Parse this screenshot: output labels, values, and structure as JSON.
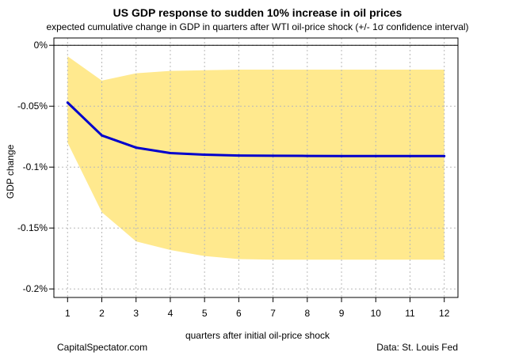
{
  "chart_data": {
    "type": "line",
    "title": "US GDP response to sudden 10% increase in oil prices",
    "subtitle": "expected cumulative change in GDP in quarters after WTI oil-price shock (+/- 1σ confidence interval)",
    "xlabel": "quarters after initial oil-price shock",
    "ylabel": "GDP change",
    "x": [
      1,
      2,
      3,
      4,
      5,
      6,
      7,
      8,
      9,
      10,
      11,
      12
    ],
    "series": [
      {
        "values": [
          -0.047,
          -0.074,
          -0.084,
          -0.0885,
          -0.0898,
          -0.0905,
          -0.0907,
          -0.0908,
          -0.0909,
          -0.0909,
          -0.0909,
          -0.0909
        ],
        "lower": [
          -0.08,
          -0.137,
          -0.161,
          -0.168,
          -0.173,
          -0.1755,
          -0.176,
          -0.176,
          -0.176,
          -0.176,
          -0.176,
          -0.176
        ],
        "upper": [
          -0.009,
          -0.029,
          -0.023,
          -0.021,
          -0.0205,
          -0.02,
          -0.02,
          -0.02,
          -0.02,
          -0.02,
          -0.02,
          -0.02
        ],
        "line_color": "#0000cc",
        "band_color": "#ffe98e"
      }
    ],
    "xlim": [
      0.6,
      12.4
    ],
    "ylim": [
      -0.207,
      0.006
    ],
    "x_ticks": [
      1,
      2,
      3,
      4,
      5,
      6,
      7,
      8,
      9,
      10,
      11,
      12
    ],
    "y_ticks": [
      0,
      -0.05,
      -0.1,
      -0.15,
      -0.2
    ],
    "y_tick_labels": [
      "0%",
      "-0.05%",
      "-0.1%",
      "-0.15%",
      "-0.2%"
    ],
    "grid": true,
    "zero_line": 0
  },
  "footer": {
    "left": "CapitalSpectator.com",
    "right": "Data: St. Louis Fed"
  }
}
